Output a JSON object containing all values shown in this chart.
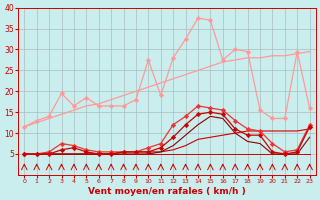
{
  "x": [
    0,
    1,
    2,
    3,
    4,
    5,
    6,
    7,
    8,
    9,
    10,
    11,
    12,
    13,
    14,
    15,
    16,
    17,
    18,
    19,
    20,
    21,
    22,
    23
  ],
  "gust_max": [
    11.5,
    13.0,
    14.0,
    19.5,
    16.5,
    18.5,
    16.5,
    16.5,
    16.5,
    18.0,
    27.5,
    19.0,
    28.0,
    32.5,
    37.5,
    37.0,
    27.5,
    30.0,
    29.5,
    15.5,
    13.5,
    13.5,
    29.5,
    16.0
  ],
  "gust_trend": [
    11.5,
    12.5,
    13.5,
    14.5,
    15.5,
    16.5,
    17.0,
    18.0,
    19.0,
    20.0,
    21.0,
    22.0,
    23.0,
    24.0,
    25.0,
    26.0,
    27.0,
    27.5,
    28.0,
    28.0,
    28.5,
    28.5,
    29.0,
    29.5
  ],
  "wind_max": [
    5.0,
    5.0,
    5.5,
    7.5,
    7.0,
    6.0,
    5.5,
    5.5,
    5.5,
    5.5,
    6.5,
    7.5,
    12.0,
    14.0,
    16.5,
    16.0,
    15.5,
    13.0,
    11.0,
    10.5,
    7.5,
    5.5,
    6.0,
    12.0
  ],
  "wind_mean": [
    5.0,
    5.0,
    5.0,
    6.0,
    6.5,
    5.5,
    5.0,
    5.0,
    5.5,
    5.5,
    5.5,
    6.5,
    9.0,
    12.0,
    14.5,
    15.0,
    14.5,
    11.0,
    9.5,
    9.5,
    5.5,
    5.0,
    5.5,
    11.5
  ],
  "wind_min": [
    5.0,
    5.0,
    5.0,
    5.0,
    5.0,
    5.0,
    5.0,
    5.0,
    5.0,
    5.0,
    5.0,
    5.5,
    7.0,
    9.5,
    12.0,
    14.0,
    13.5,
    10.0,
    8.0,
    7.5,
    5.0,
    5.0,
    5.0,
    9.0
  ],
  "wind_flat": [
    5.0,
    5.0,
    5.0,
    5.0,
    5.0,
    5.0,
    5.0,
    5.0,
    5.0,
    5.0,
    5.0,
    5.0,
    5.0,
    5.0,
    5.0,
    5.0,
    5.0,
    5.0,
    5.0,
    5.0,
    5.0,
    5.0,
    5.0,
    5.0
  ],
  "wind_trend": [
    5.0,
    5.0,
    5.0,
    5.0,
    5.0,
    5.0,
    5.0,
    5.0,
    5.5,
    5.5,
    5.5,
    5.5,
    6.0,
    7.0,
    8.5,
    9.0,
    9.5,
    10.0,
    10.5,
    10.5,
    10.5,
    10.5,
    10.5,
    11.0
  ],
  "arrows_y": [
    2.5,
    2.5,
    2.5,
    2.5,
    2.5,
    2.5,
    2.5,
    2.5,
    2.5,
    2.5,
    2.5,
    2.5,
    2.5,
    2.5,
    2.5,
    2.5,
    2.5,
    2.5,
    2.5,
    2.5,
    2.5,
    2.5,
    2.5,
    2.5
  ],
  "bg_color": "#caeeed",
  "grid_color": "#aabcbc",
  "color_light_pink": "#ff9999",
  "color_dark_red": "#cc0000",
  "color_mid_red": "#ee3333",
  "color_black_red": "#880000",
  "xlabel": "Vent moyen/en rafales ( km/h )",
  "xlabel_color": "#cc0000",
  "tick_color": "#cc0000",
  "ylim": [
    0,
    40
  ],
  "xlim_min": -0.5,
  "xlim_max": 23.5,
  "yticks": [
    5,
    10,
    15,
    20,
    25,
    30,
    35,
    40
  ],
  "xticks": [
    0,
    1,
    2,
    3,
    4,
    5,
    6,
    7,
    8,
    9,
    10,
    11,
    12,
    13,
    14,
    15,
    16,
    17,
    18,
    19,
    20,
    21,
    22,
    23
  ]
}
